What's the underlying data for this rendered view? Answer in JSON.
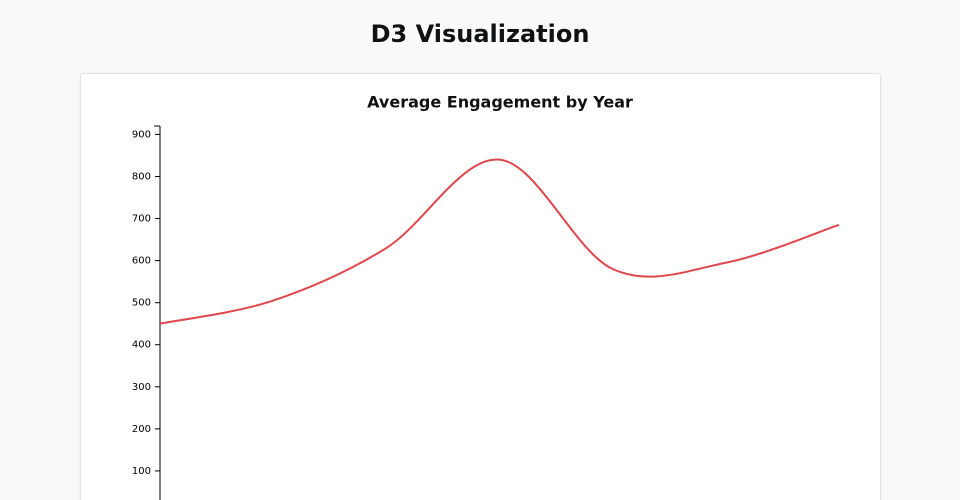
{
  "page_title": "D3 Visualization",
  "chart_data": {
    "type": "line",
    "title": "Average Engagement by Year",
    "categories": [
      null,
      null,
      null,
      null,
      null,
      null,
      null
    ],
    "series": [
      {
        "color": "#e0474c",
        "values": [
          450,
          505,
          630,
          840,
          580,
          595,
          685
        ]
      }
    ],
    "ylim": [
      0,
      920
    ],
    "yticks": [
      100,
      200,
      300,
      400,
      500,
      600,
      700,
      800,
      900
    ]
  }
}
